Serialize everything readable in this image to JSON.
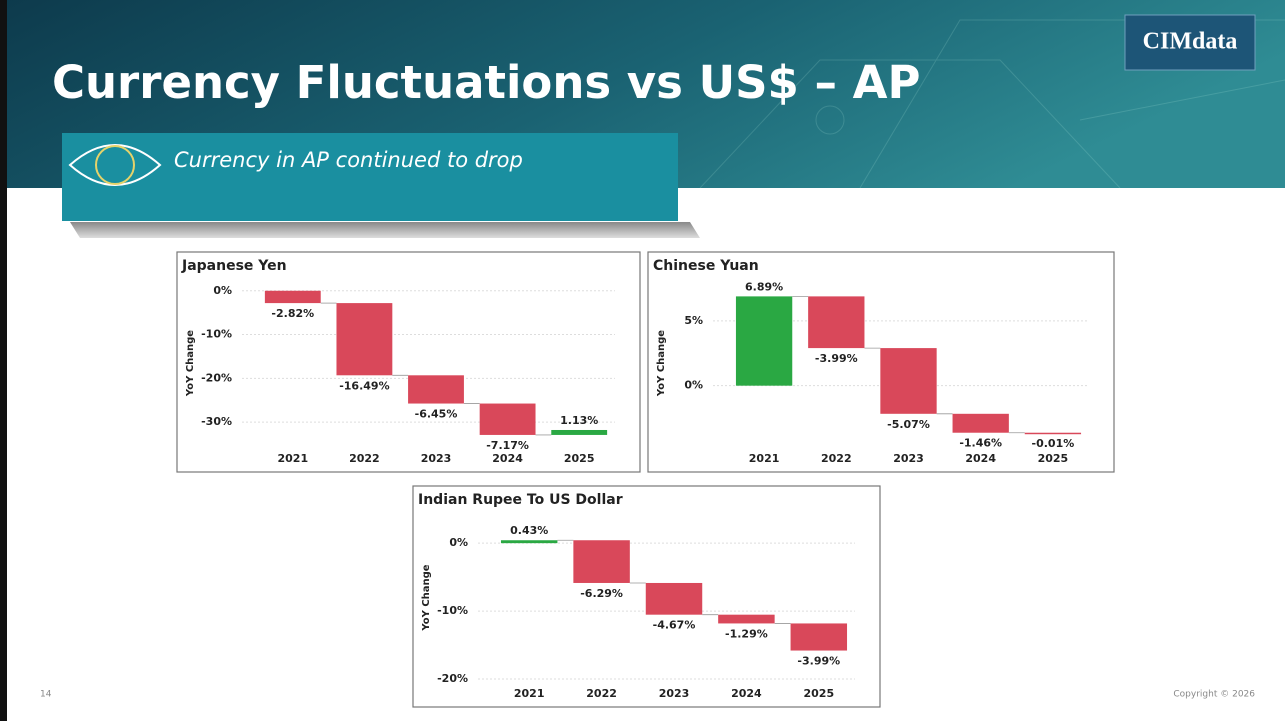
{
  "slide": {
    "title": "Currency Fluctuations vs US$ – AP",
    "subtitle": "Currency in AP continued to drop",
    "logo": "CIMdata",
    "page_number": "14",
    "copyright": "Copyright © 2026"
  },
  "chart_data": [
    {
      "type": "waterfall",
      "title": "Japanese Yen",
      "y_label": "YoY Change",
      "categories": [
        "2021",
        "2022",
        "2023",
        "2024",
        "2025"
      ],
      "values": [
        -2.82,
        -16.49,
        -6.45,
        -7.17,
        1.13
      ],
      "value_labels": [
        "-2.82%",
        "-16.49%",
        "-6.45%",
        "-7.17%",
        "1.13%"
      ],
      "ylim": [
        -35,
        2
      ],
      "yticks": [
        {
          "value": 0,
          "label": "0%"
        },
        {
          "value": -10,
          "label": "-10%"
        },
        {
          "value": -20,
          "label": "-20%"
        },
        {
          "value": -30,
          "label": "-30%"
        }
      ],
      "increase_color": "#2aa843",
      "decrease_color": "#d9485a",
      "grid": true
    },
    {
      "type": "waterfall",
      "title": "Chinese Yuan",
      "y_label": "YoY Change",
      "categories": [
        "2021",
        "2022",
        "2023",
        "2024",
        "2025"
      ],
      "values": [
        6.89,
        -3.99,
        -5.07,
        -1.46,
        -0.01
      ],
      "value_labels": [
        "6.89%",
        "-3.99%",
        "-5.07%",
        "-1.46%",
        "-0.01%"
      ],
      "ylim": [
        -4.5,
        8
      ],
      "yticks": [
        {
          "value": 5,
          "label": "5%"
        },
        {
          "value": 0,
          "label": "0%"
        }
      ],
      "increase_color": "#2aa843",
      "decrease_color": "#d9485a",
      "grid": true
    },
    {
      "type": "waterfall",
      "title": "Indian Rupee To US Dollar",
      "y_label": "YoY Change",
      "categories": [
        "2021",
        "2022",
        "2023",
        "2024",
        "2025"
      ],
      "values": [
        0.43,
        -6.29,
        -4.67,
        -1.29,
        -3.99
      ],
      "value_labels": [
        "0.43%",
        "-6.29%",
        "-4.67%",
        "-1.29%",
        "-3.99%"
      ],
      "ylim": [
        -20,
        4
      ],
      "yticks": [
        {
          "value": 0,
          "label": "0%"
        },
        {
          "value": -10,
          "label": "-10%"
        },
        {
          "value": -20,
          "label": "-20%"
        }
      ],
      "increase_color": "#2aa843",
      "decrease_color": "#d9485a",
      "grid": true
    }
  ]
}
